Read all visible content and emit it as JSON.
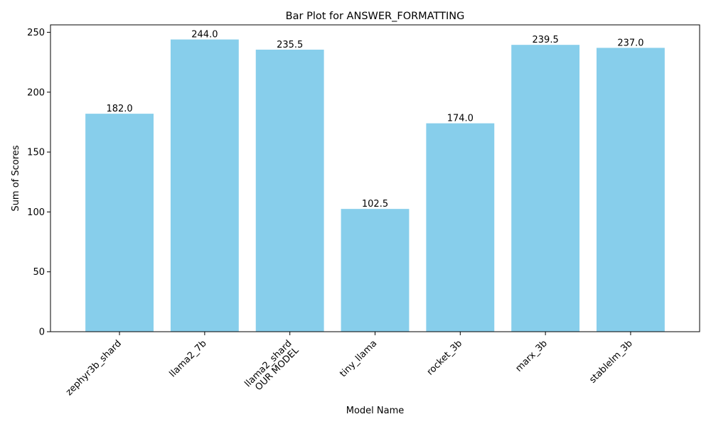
{
  "chart_data": {
    "type": "bar",
    "title": "Bar Plot for ANSWER_FORMATTING",
    "xlabel": "Model Name",
    "ylabel": "Sum of Scores",
    "categories": [
      "zephyr3b_shard",
      "llama2_7b",
      "llama2_shard\nOUR MODEL",
      "tiny_llama",
      "rocket_3b",
      "marx_3b",
      "stablelm_3b"
    ],
    "values": [
      182.0,
      244.0,
      235.5,
      102.5,
      174.0,
      239.5,
      237.0
    ],
    "value_labels": [
      "182.0",
      "244.0",
      "235.5",
      "102.5",
      "174.0",
      "239.5",
      "237.0"
    ],
    "ylim": [
      0,
      256.2
    ],
    "yticks": [
      0,
      50,
      100,
      150,
      200,
      250
    ],
    "ytick_labels": [
      "0",
      "50",
      "100",
      "150",
      "200",
      "250"
    ],
    "bar_color": "#87CEEB",
    "grid": false,
    "legend": "none"
  }
}
